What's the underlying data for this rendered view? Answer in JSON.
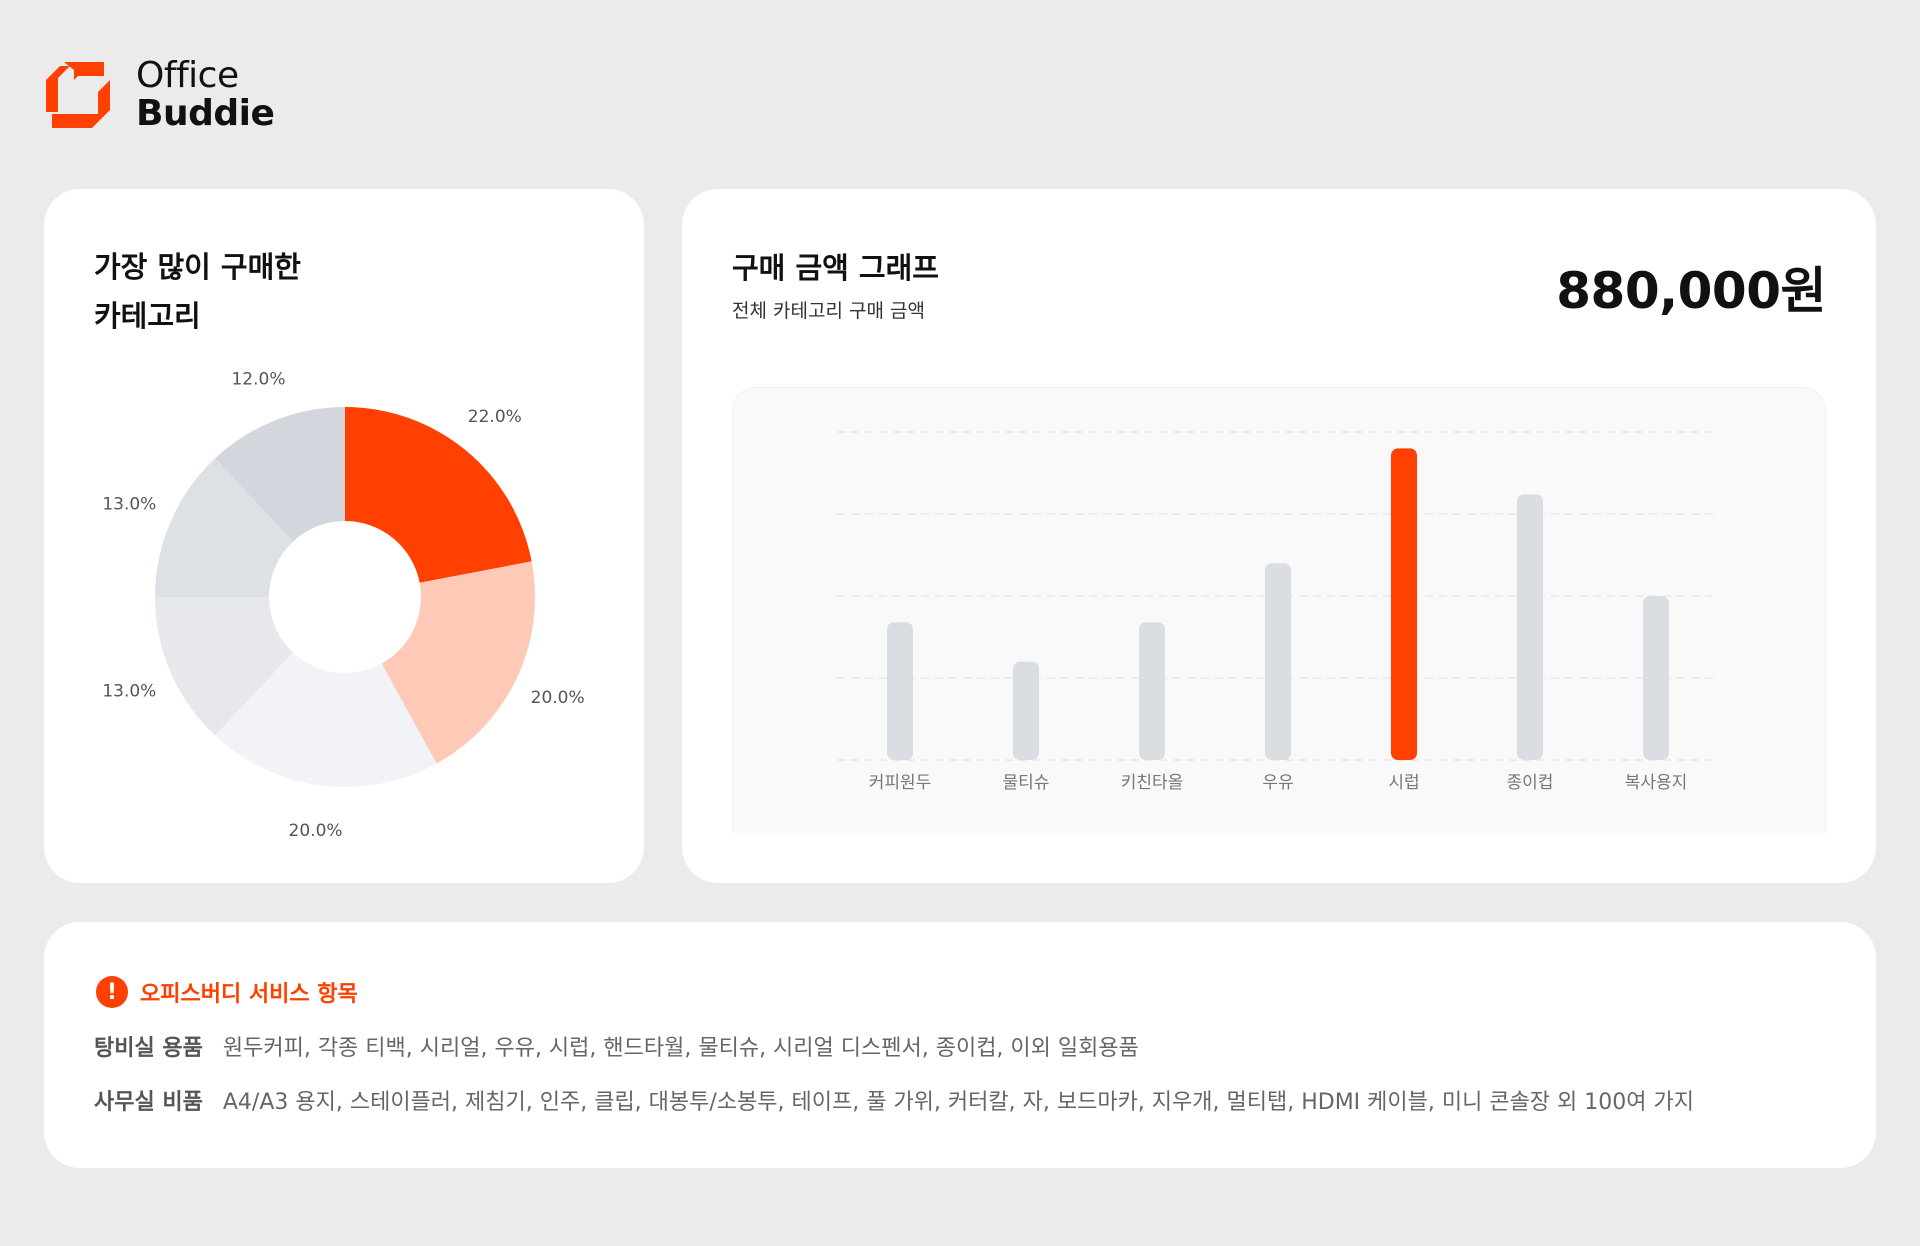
{
  "brand": {
    "line1": "Office",
    "line2": "Buddie",
    "accent_color": "#ff4000"
  },
  "category_card": {
    "title_line1": "가장 많이 구매한",
    "title_line2": "카테고리",
    "chart_data": {
      "type": "pie",
      "donut": true,
      "values": [
        22.0,
        20.0,
        20.0,
        13.0,
        13.0,
        12.0
      ],
      "labels": [
        "22.0%",
        "20.0%",
        "20.0%",
        "13.0%",
        "13.0%",
        "12.0%"
      ],
      "colors": [
        "#ff4000",
        "#ffc9b7",
        "#f2f3f6",
        "#e7e8ec",
        "#dde0e5",
        "#d3d6dd"
      ]
    }
  },
  "amount_card": {
    "title": "구매 금액 그래프",
    "subtitle": "전체 카테고리 구매 금액",
    "total": "880,000원",
    "chart_data": {
      "type": "bar",
      "categories": [
        "커피원두",
        "물티슈",
        "키친타올",
        "우유",
        "시럽",
        "종이컵",
        "복사용지"
      ],
      "values": [
        42,
        30,
        42,
        60,
        95,
        81,
        50
      ],
      "highlight_index": 4,
      "highlight_color": "#ff4000",
      "bar_color": "#dadde2",
      "ylim": [
        0,
        100
      ],
      "grid": true
    }
  },
  "services": {
    "icon": "exclamation-icon",
    "title": "오피스버디 서비스 항목",
    "rows": [
      {
        "label": "탕비실 용품",
        "items": "원두커피, 각종 티백, 시리얼, 우유, 시럽, 핸드타월, 물티슈, 시리얼 디스펜서, 종이컵, 이외 일회용품"
      },
      {
        "label": "사무실 비품",
        "items": "A4/A3 용지, 스테이플러, 제침기, 인주, 클립, 대봉투/소봉투, 테이프, 풀 가위, 커터칼, 자, 보드마카, 지우개, 멀티탭, HDMI 케이블, 미니 콘솔장 외 100여 가지"
      }
    ]
  }
}
